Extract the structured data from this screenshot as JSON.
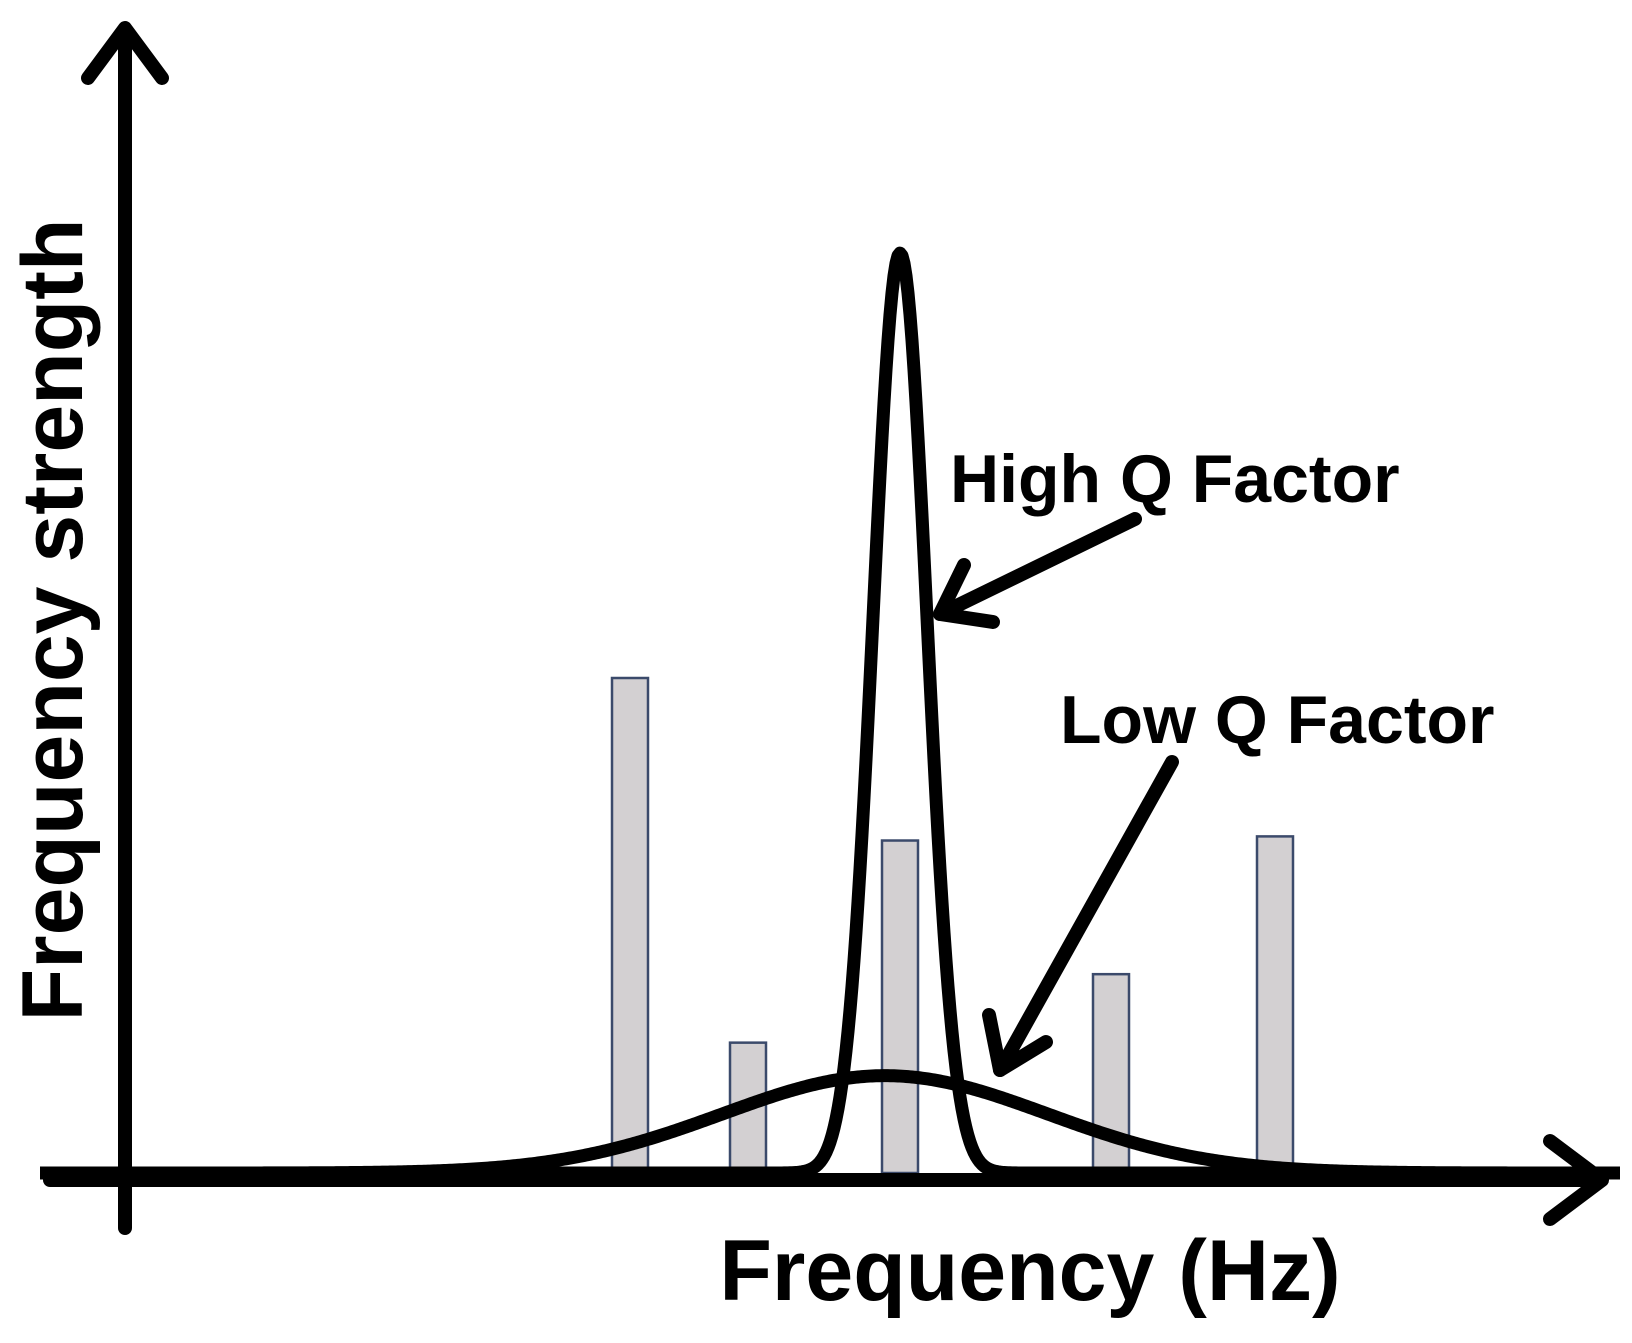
{
  "chart_data": {
    "type": "bar",
    "ylabel": "Frequency strength",
    "xlabel": "Frequency (Hz)",
    "bars": [
      {
        "x": 630,
        "value": 0.6
      },
      {
        "x": 748,
        "value": 0.158
      },
      {
        "x": 900,
        "value": 0.403
      },
      {
        "x": 1111,
        "value": 0.241
      },
      {
        "x": 1275,
        "value": 0.408
      }
    ],
    "curves": [
      {
        "name": "High Q Factor",
        "center": 900,
        "peak": 1.115,
        "width": 38
      },
      {
        "name": "Low Q Factor",
        "center": 885,
        "peak": 0.118,
        "width": 230
      }
    ],
    "annotations": [
      "High Q Factor",
      "Low Q Factor"
    ]
  },
  "colors": {
    "bar_fill": "#d3d0d2",
    "bar_stroke": "#3b4a6b",
    "line": "#000000"
  }
}
